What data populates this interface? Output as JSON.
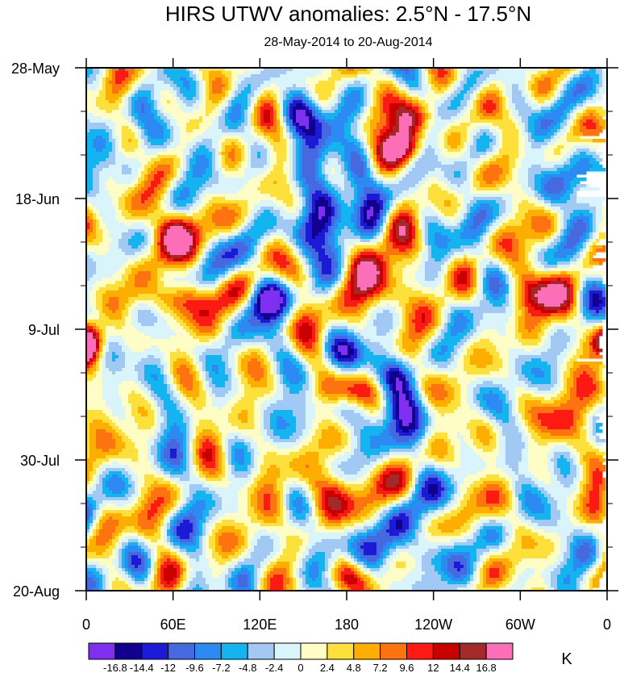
{
  "chart_data": {
    "type": "heatmap",
    "title": "HIRS UTWV anomalies: 2.5°N - 17.5°N",
    "subtitle": "28-May-2014 to 20-Aug-2014",
    "x_ticks": [
      "0",
      "60E",
      "120E",
      "180",
      "120W",
      "60W",
      "0"
    ],
    "x_range": [
      0,
      360
    ],
    "y_ticks": [
      "28-May",
      "18-Jun",
      "9-Jul",
      "30-Jul",
      "20-Aug"
    ],
    "y_range_days": [
      0,
      84
    ],
    "colorbar_unit": "K",
    "colorbar_labels": [
      "-16.8",
      "-14.4",
      "-12",
      "-9.6",
      "-7.2",
      "-4.8",
      "-2.4",
      "0",
      "2.4",
      "4.8",
      "7.2",
      "9.6",
      "12",
      "14.4",
      "16.8"
    ],
    "levels": [
      -16.8,
      -14.4,
      -12,
      -9.6,
      -7.2,
      -4.8,
      -2.4,
      0,
      2.4,
      4.8,
      7.2,
      9.6,
      12,
      14.4,
      16.8
    ],
    "colors": [
      "#7f2ff0",
      "#12008e",
      "#1c1ad6",
      "#4669e0",
      "#2b8bf2",
      "#14b4f0",
      "#a2c9f4",
      "#d9f4fb",
      "#fefdc6",
      "#fde03a",
      "#fdae00",
      "#fd7310",
      "#fc1a12",
      "#c90000",
      "#a42a2a",
      "#fd6eb8"
    ],
    "features": [
      {
        "lon": 155,
        "day": 8,
        "value": -13,
        "ew": 12,
        "ed": 2.5
      },
      {
        "lon": 158,
        "day": 27,
        "value": -12,
        "ew": 16,
        "ed": 3
      },
      {
        "lon": 170,
        "day": 16,
        "value": -8,
        "ew": 16,
        "ed": 3.5
      },
      {
        "lon": 222,
        "day": 13,
        "value": 16,
        "ew": 10,
        "ed": 2
      },
      {
        "lon": 222,
        "day": 8,
        "value": 17,
        "ew": 10,
        "ed": 2.5
      },
      {
        "lon": 192,
        "day": 35,
        "value": 9,
        "ew": 14,
        "ed": 4
      },
      {
        "lon": 310,
        "day": 36,
        "value": 16,
        "ew": 12,
        "ed": 2.5
      },
      {
        "lon": 125,
        "day": 37,
        "value": -10,
        "ew": 16,
        "ed": 2
      },
      {
        "lon": 180,
        "day": 46,
        "value": -12,
        "ew": 12,
        "ed": 2
      },
      {
        "lon": 180,
        "day": 52,
        "value": 12,
        "ew": 14,
        "ed": 1.8
      },
      {
        "lon": 205,
        "day": 56,
        "value": -9,
        "ew": 24,
        "ed": 3
      },
      {
        "lon": 215,
        "day": 49,
        "value": -8,
        "ew": 10,
        "ed": 2
      },
      {
        "lon": 55,
        "day": 26,
        "value": 9,
        "ew": 28,
        "ed": 3
      },
      {
        "lon": 60,
        "day": 37,
        "value": 10,
        "ew": 28,
        "ed": 2
      },
      {
        "lon": 165,
        "day": 68,
        "value": 10,
        "ew": 20,
        "ed": 3.5
      },
      {
        "lon": 210,
        "day": 77,
        "value": -10,
        "ew": 24,
        "ed": 3
      },
      {
        "lon": 182,
        "day": 82,
        "value": 11,
        "ew": 10,
        "ed": 2
      },
      {
        "lon": 358,
        "day": 44,
        "value": 13,
        "ew": 8,
        "ed": 2
      },
      {
        "lon": 2,
        "day": 44,
        "value": 12,
        "ew": 8,
        "ed": 2
      },
      {
        "lon": 190,
        "day": 23,
        "value": -9,
        "ew": 24,
        "ed": 3
      },
      {
        "lon": 205,
        "day": 31,
        "value": 8,
        "ew": 14,
        "ed": 6
      },
      {
        "lon": 40,
        "day": 10,
        "value": -9,
        "ew": 8,
        "ed": 3
      },
      {
        "lon": 335,
        "day": 18,
        "value": -7,
        "ew": 14,
        "ed": 3
      },
      {
        "lon": 330,
        "day": 57,
        "value": 8,
        "ew": 16,
        "ed": 3
      }
    ]
  }
}
